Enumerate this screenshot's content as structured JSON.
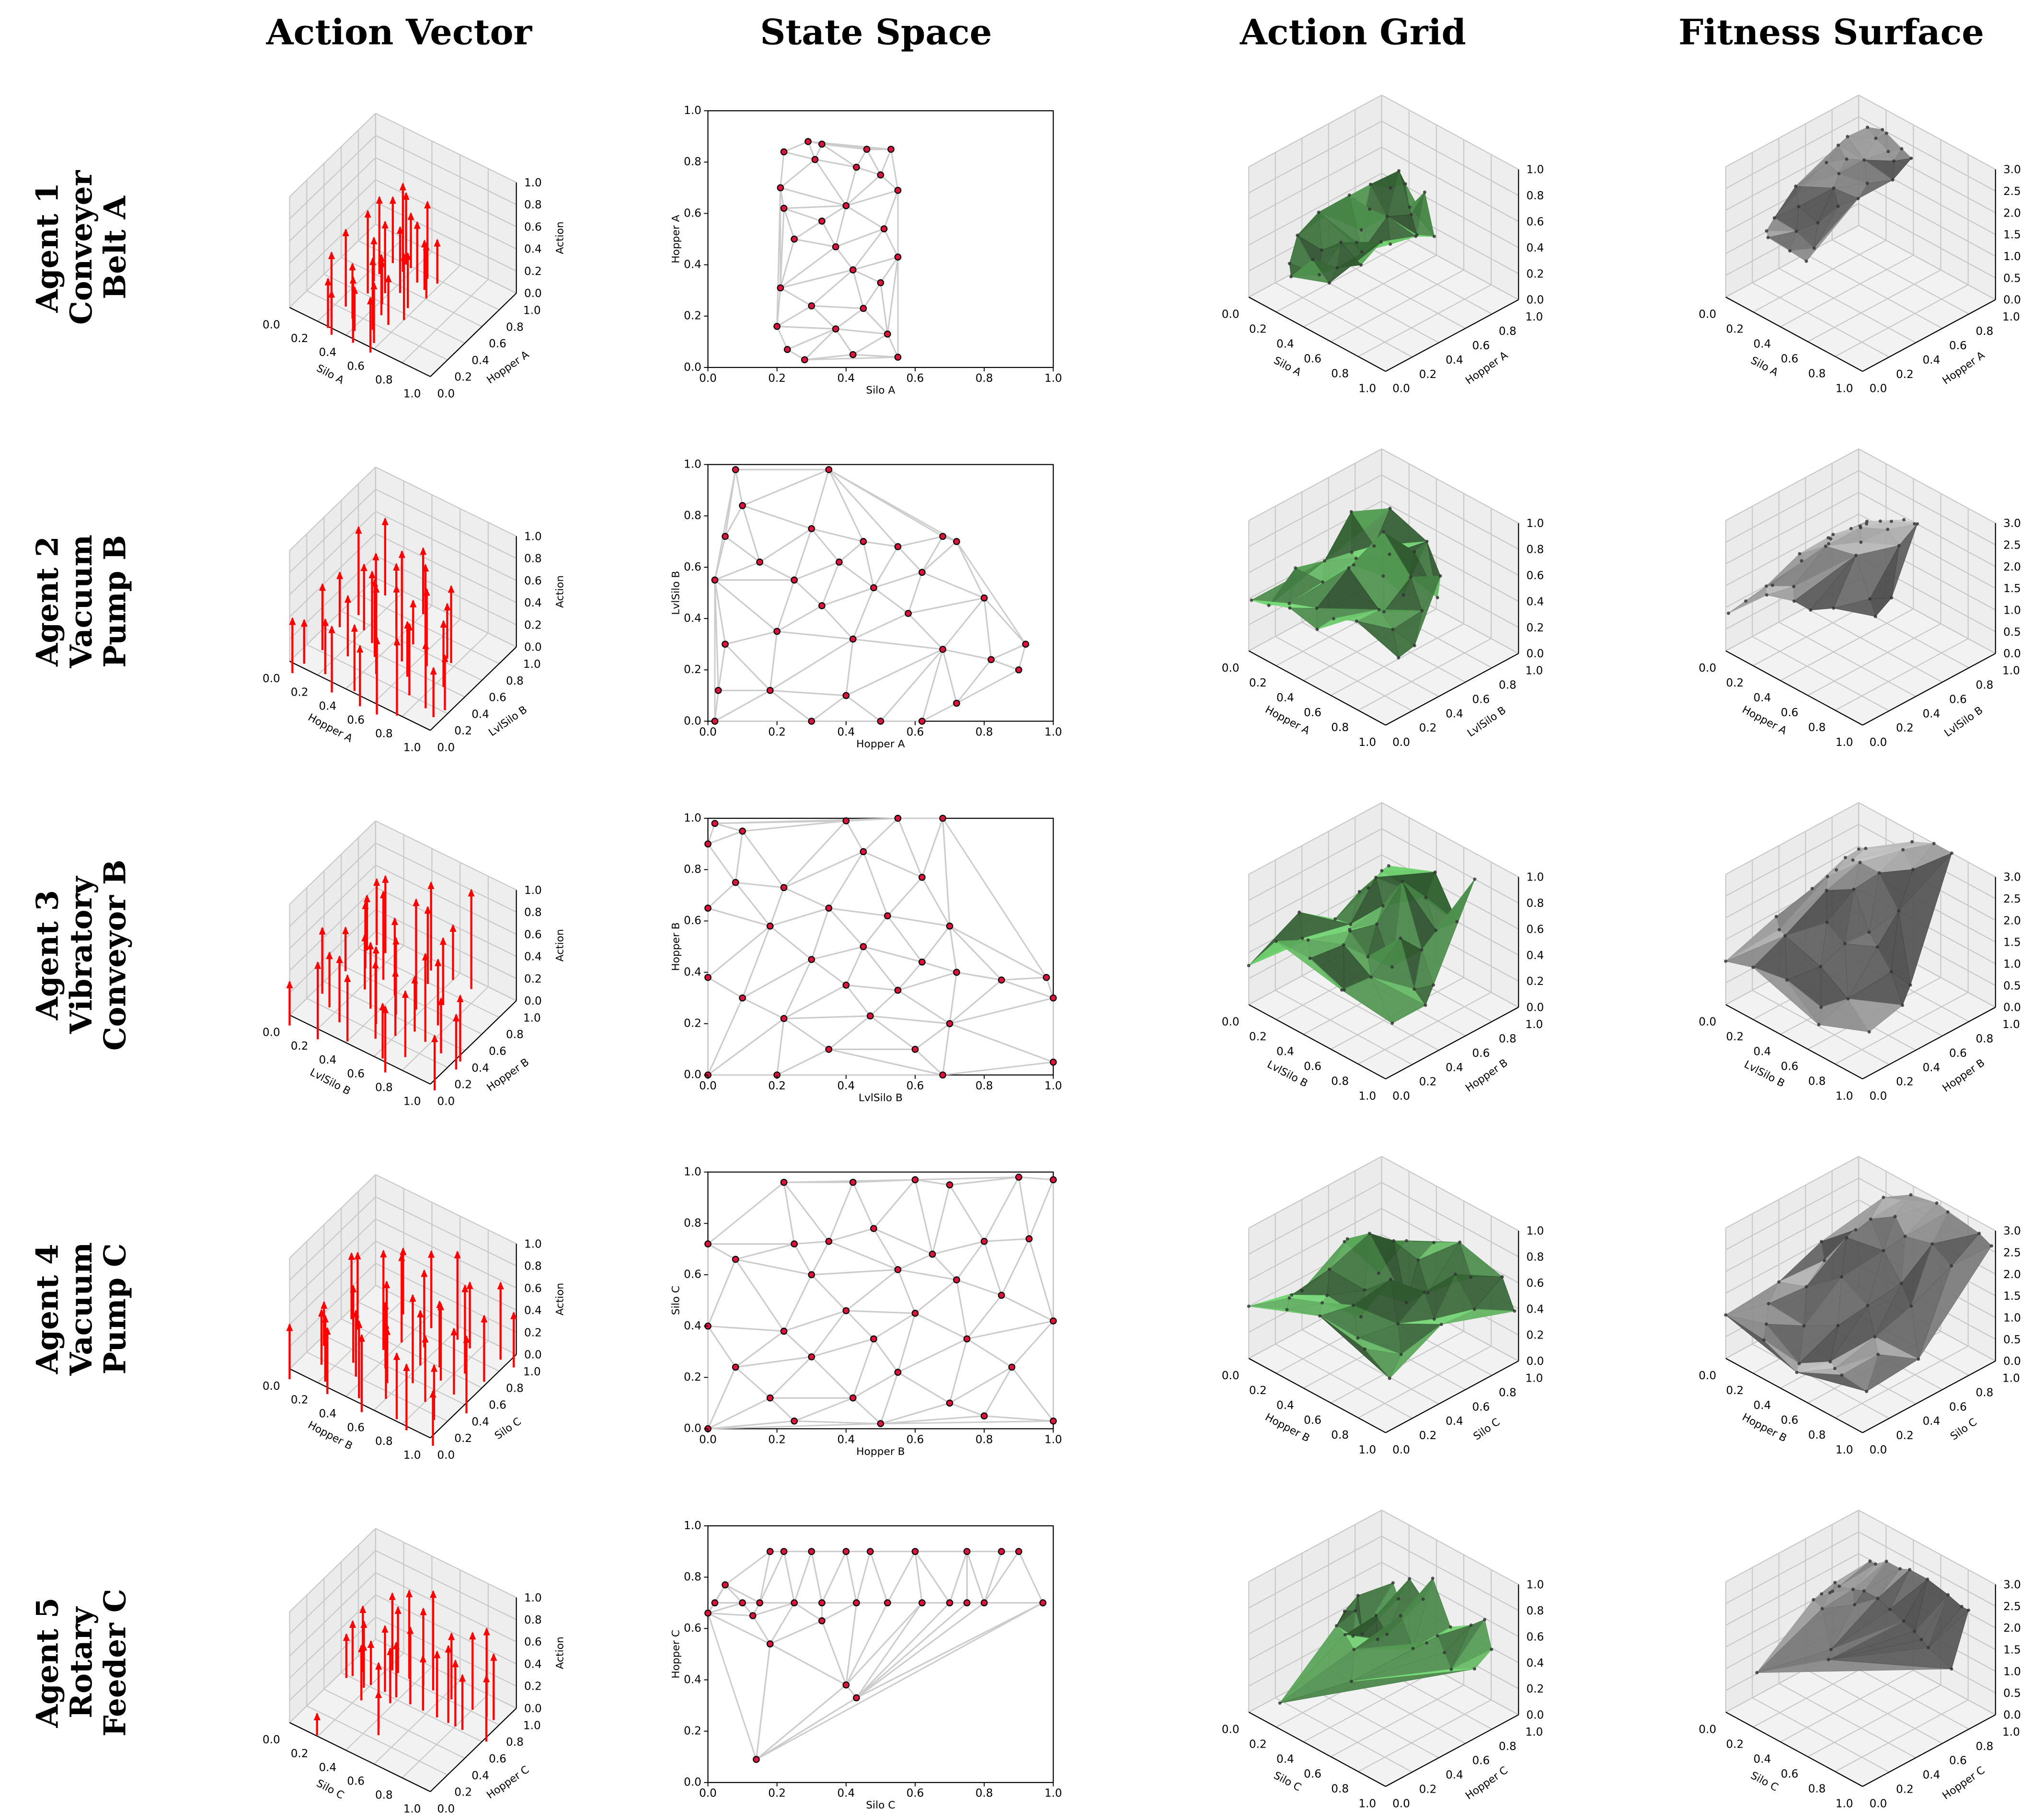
{
  "chart_data": {
    "type": "grid-of-plots",
    "column_titles": [
      "Action Vector",
      "State Space",
      "Action Grid",
      "Fitness Surface"
    ],
    "panel_types": [
      "3d-quiver",
      "scatter-delaunay",
      "3d-trisurface",
      "3d-trisurface"
    ],
    "colors": {
      "arrow": "#ff0000",
      "point_fill": "#dc143c",
      "point_edge": "#000000",
      "mesh": "#cccccc",
      "action_surface": "#77dd77",
      "fitness_surface": "#c8c8c8",
      "surface_points": "#333333"
    },
    "xlim": [
      0,
      1
    ],
    "ylim": [
      0,
      1
    ],
    "action_zlim": [
      0,
      1
    ],
    "fitness_zlim": [
      0,
      3
    ],
    "ticks_unit": [
      "0.0",
      "0.2",
      "0.4",
      "0.6",
      "0.8",
      "1.0"
    ],
    "ticks_fitness": [
      "0.0",
      "0.5",
      "1.0",
      "1.5",
      "2.0",
      "2.5",
      "3.0"
    ],
    "zlabel_action": "Action",
    "agents": [
      {
        "label": [
          "Agent 1",
          "Conveyer",
          "Belt A"
        ],
        "xlabel": "Silo A",
        "ylabel": "Hopper A",
        "points": [
          [
            0.29,
            0.88,
            0.55,
            2.9
          ],
          [
            0.33,
            0.87,
            0.4,
            2.9
          ],
          [
            0.46,
            0.85,
            0.6,
            2.8
          ],
          [
            0.53,
            0.85,
            0.3,
            2.7
          ],
          [
            0.22,
            0.84,
            0.5,
            2.9
          ],
          [
            0.31,
            0.81,
            0.7,
            2.85
          ],
          [
            0.43,
            0.78,
            0.45,
            2.8
          ],
          [
            0.5,
            0.75,
            0.35,
            2.75
          ],
          [
            0.21,
            0.7,
            0.6,
            2.9
          ],
          [
            0.55,
            0.69,
            0.4,
            2.5
          ],
          [
            0.4,
            0.63,
            0.5,
            2.8
          ],
          [
            0.22,
            0.62,
            0.3,
            2.85
          ],
          [
            0.33,
            0.57,
            0.55,
            2.8
          ],
          [
            0.51,
            0.54,
            0.4,
            2.6
          ],
          [
            0.25,
            0.5,
            0.65,
            2.7
          ],
          [
            0.37,
            0.47,
            0.3,
            2.7
          ],
          [
            0.55,
            0.43,
            0.5,
            2.5
          ],
          [
            0.42,
            0.38,
            0.45,
            2.6
          ],
          [
            0.21,
            0.31,
            0.6,
            2.4
          ],
          [
            0.5,
            0.33,
            0.35,
            2.4
          ],
          [
            0.3,
            0.24,
            0.4,
            2.2
          ],
          [
            0.45,
            0.23,
            0.55,
            2.1
          ],
          [
            0.2,
            0.16,
            0.5,
            1.9
          ],
          [
            0.37,
            0.15,
            0.3,
            1.9
          ],
          [
            0.52,
            0.13,
            0.45,
            1.8
          ],
          [
            0.23,
            0.07,
            0.35,
            1.8
          ],
          [
            0.42,
            0.05,
            0.5,
            1.7
          ],
          [
            0.55,
            0.04,
            0.4,
            1.7
          ],
          [
            0.28,
            0.03,
            0.3,
            1.8
          ]
        ]
      },
      {
        "label": [
          "Agent 2",
          "Vacuum",
          "Pump B"
        ],
        "xlabel": "Hopper A",
        "ylabel": "LvlSilo B",
        "points": [
          [
            0.08,
            0.98,
            0.6,
            1.5
          ],
          [
            0.35,
            0.98,
            0.5,
            2.0
          ],
          [
            0.1,
            0.84,
            0.4,
            1.6
          ],
          [
            0.05,
            0.72,
            0.7,
            1.5
          ],
          [
            0.3,
            0.75,
            0.5,
            2.2
          ],
          [
            0.68,
            0.72,
            0.4,
            2.9
          ],
          [
            0.72,
            0.7,
            0.6,
            3.0
          ],
          [
            0.45,
            0.7,
            0.3,
            2.6
          ],
          [
            0.55,
            0.68,
            0.7,
            2.8
          ],
          [
            0.15,
            0.62,
            0.5,
            1.7
          ],
          [
            0.38,
            0.62,
            0.45,
            2.5
          ],
          [
            0.62,
            0.58,
            0.6,
            2.9
          ],
          [
            0.02,
            0.55,
            0.4,
            1.2
          ],
          [
            0.25,
            0.55,
            0.55,
            2.2
          ],
          [
            0.48,
            0.52,
            0.9,
            2.8
          ],
          [
            0.8,
            0.48,
            0.5,
            3.0
          ],
          [
            0.33,
            0.45,
            0.6,
            2.4
          ],
          [
            0.58,
            0.42,
            0.4,
            2.8
          ],
          [
            0.05,
            0.3,
            0.5,
            1.1
          ],
          [
            0.2,
            0.35,
            0.45,
            2.0
          ],
          [
            0.42,
            0.32,
            0.7,
            2.6
          ],
          [
            0.68,
            0.28,
            0.55,
            2.9
          ],
          [
            0.92,
            0.3,
            0.4,
            2.3
          ],
          [
            0.82,
            0.24,
            0.5,
            2.2
          ],
          [
            0.9,
            0.2,
            0.35,
            2.0
          ],
          [
            0.72,
            0.07,
            0.6,
            2.1
          ],
          [
            0.18,
            0.12,
            0.4,
            1.6
          ],
          [
            0.4,
            0.1,
            0.5,
            2.0
          ],
          [
            0.03,
            0.12,
            0.3,
            1.0
          ],
          [
            0.02,
            0.0,
            0.4,
            0.9
          ],
          [
            0.3,
            0.0,
            0.5,
            1.8
          ],
          [
            0.5,
            0.0,
            0.45,
            2.0
          ],
          [
            0.62,
            0.0,
            0.6,
            2.0
          ]
        ]
      },
      {
        "label": [
          "Agent 3",
          "Vibratory",
          "Conveyor B"
        ],
        "xlabel": "LvlSilo B",
        "ylabel": "Hopper B",
        "points": [
          [
            0.02,
            0.98,
            0.5,
            2.0
          ],
          [
            0.1,
            0.95,
            0.6,
            2.2
          ],
          [
            0.4,
            0.99,
            0.7,
            2.8
          ],
          [
            0.55,
            1.0,
            0.4,
            3.0
          ],
          [
            0.68,
            1.0,
            0.8,
            3.0
          ],
          [
            0.0,
            0.9,
            0.4,
            1.9
          ],
          [
            0.45,
            0.87,
            0.6,
            2.9
          ],
          [
            0.62,
            0.77,
            0.5,
            2.9
          ],
          [
            0.08,
            0.75,
            0.5,
            2.0
          ],
          [
            0.22,
            0.73,
            0.7,
            2.5
          ],
          [
            0.35,
            0.65,
            0.6,
            2.8
          ],
          [
            0.52,
            0.62,
            0.9,
            2.9
          ],
          [
            0.7,
            0.58,
            0.5,
            2.4
          ],
          [
            0.18,
            0.58,
            0.4,
            2.3
          ],
          [
            0.0,
            0.65,
            0.3,
            1.6
          ],
          [
            0.45,
            0.5,
            0.6,
            2.6
          ],
          [
            0.3,
            0.45,
            0.5,
            2.4
          ],
          [
            0.62,
            0.44,
            0.4,
            2.0
          ],
          [
            0.72,
            0.4,
            0.7,
            1.9
          ],
          [
            0.0,
            0.38,
            0.5,
            1.4
          ],
          [
            0.4,
            0.35,
            0.6,
            2.0
          ],
          [
            0.55,
            0.33,
            0.5,
            1.8
          ],
          [
            0.85,
            0.37,
            0.4,
            1.6
          ],
          [
            0.98,
            0.38,
            0.5,
            1.5
          ],
          [
            0.1,
            0.3,
            0.4,
            1.4
          ],
          [
            0.22,
            0.22,
            0.5,
            1.6
          ],
          [
            0.47,
            0.23,
            0.6,
            1.3
          ],
          [
            0.7,
            0.2,
            0.5,
            1.0
          ],
          [
            1.0,
            0.3,
            0.4,
            1.2
          ],
          [
            0.35,
            0.1,
            0.5,
            1.0
          ],
          [
            0.6,
            0.1,
            0.4,
            0.8
          ],
          [
            0.0,
            0.0,
            0.3,
            1.0
          ],
          [
            0.2,
            0.0,
            0.6,
            1.2
          ],
          [
            0.68,
            0.0,
            0.5,
            0.7
          ],
          [
            1.0,
            0.05,
            0.4,
            1.0
          ]
        ]
      },
      {
        "label": [
          "Agent 4",
          "Vacuum",
          "Pump C"
        ],
        "xlabel": "Hopper B",
        "ylabel": "Silo C",
        "points": [
          [
            0.22,
            0.96,
            0.5,
            2.5
          ],
          [
            0.42,
            0.96,
            0.6,
            2.9
          ],
          [
            0.6,
            0.97,
            0.7,
            3.0
          ],
          [
            0.7,
            0.95,
            0.5,
            3.0
          ],
          [
            0.9,
            0.98,
            0.6,
            2.8
          ],
          [
            1.0,
            0.97,
            0.4,
            2.7
          ],
          [
            0.0,
            0.72,
            0.5,
            1.5
          ],
          [
            0.08,
            0.66,
            0.6,
            1.3
          ],
          [
            0.25,
            0.72,
            0.4,
            2.2
          ],
          [
            0.35,
            0.73,
            0.7,
            2.6
          ],
          [
            0.48,
            0.78,
            0.6,
            2.8
          ],
          [
            0.65,
            0.68,
            0.5,
            2.8
          ],
          [
            0.8,
            0.73,
            0.7,
            2.8
          ],
          [
            0.93,
            0.74,
            0.5,
            2.5
          ],
          [
            0.3,
            0.6,
            0.8,
            2.3
          ],
          [
            0.55,
            0.62,
            0.4,
            2.4
          ],
          [
            0.72,
            0.58,
            0.6,
            2.0
          ],
          [
            0.4,
            0.46,
            0.5,
            1.8
          ],
          [
            0.6,
            0.45,
            0.7,
            1.5
          ],
          [
            0.85,
            0.52,
            0.5,
            1.8
          ],
          [
            0.0,
            0.4,
            0.3,
            1.1
          ],
          [
            0.22,
            0.38,
            0.6,
            1.4
          ],
          [
            0.48,
            0.35,
            0.4,
            1.0
          ],
          [
            0.75,
            0.35,
            0.5,
            1.2
          ],
          [
            1.0,
            0.42,
            0.6,
            1.0
          ],
          [
            0.08,
            0.24,
            0.4,
            1.0
          ],
          [
            0.3,
            0.28,
            0.5,
            0.8
          ],
          [
            0.55,
            0.22,
            0.6,
            0.5
          ],
          [
            0.88,
            0.24,
            0.4,
            1.2
          ],
          [
            0.18,
            0.12,
            0.5,
            0.9
          ],
          [
            0.42,
            0.12,
            0.6,
            0.4
          ],
          [
            0.7,
            0.1,
            0.5,
            0.8
          ],
          [
            0.0,
            0.0,
            0.4,
            1.0
          ],
          [
            0.25,
            0.03,
            0.5,
            0.8
          ],
          [
            0.5,
            0.02,
            0.6,
            0.5
          ],
          [
            0.8,
            0.05,
            0.5,
            0.9
          ],
          [
            1.0,
            0.03,
            0.4,
            0.9
          ]
        ]
      },
      {
        "label": [
          "Agent 5",
          "Rotary",
          "Feeder C"
        ],
        "xlabel": "Silo C",
        "ylabel": "Hopper C",
        "points": [
          [
            0.05,
            0.77,
            0.5,
            1.8
          ],
          [
            0.02,
            0.7,
            0.4,
            1.6
          ],
          [
            0.1,
            0.7,
            0.45,
            1.8
          ],
          [
            0.0,
            0.66,
            0.3,
            1.5
          ],
          [
            0.18,
            0.9,
            0.6,
            2.3
          ],
          [
            0.22,
            0.9,
            0.5,
            2.3
          ],
          [
            0.3,
            0.9,
            0.7,
            2.5
          ],
          [
            0.4,
            0.9,
            0.6,
            2.5
          ],
          [
            0.47,
            0.9,
            0.8,
            2.6
          ],
          [
            0.6,
            0.9,
            0.5,
            2.6
          ],
          [
            0.75,
            0.9,
            0.6,
            2.5
          ],
          [
            0.85,
            0.9,
            0.7,
            2.4
          ],
          [
            0.9,
            0.9,
            0.5,
            2.4
          ],
          [
            0.15,
            0.7,
            0.3,
            2.0
          ],
          [
            0.25,
            0.7,
            0.5,
            2.1
          ],
          [
            0.33,
            0.7,
            0.4,
            2.2
          ],
          [
            0.43,
            0.7,
            0.6,
            2.2
          ],
          [
            0.52,
            0.7,
            0.4,
            2.1
          ],
          [
            0.62,
            0.7,
            0.5,
            2.0
          ],
          [
            0.7,
            0.7,
            0.6,
            1.9
          ],
          [
            0.75,
            0.7,
            0.5,
            1.8
          ],
          [
            0.8,
            0.7,
            0.4,
            1.7
          ],
          [
            0.97,
            0.7,
            0.5,
            1.5
          ],
          [
            0.33,
            0.63,
            0.4,
            2.0
          ],
          [
            0.13,
            0.65,
            0.3,
            1.9
          ],
          [
            0.18,
            0.54,
            0.4,
            1.8
          ],
          [
            0.4,
            0.38,
            0.5,
            1.5
          ],
          [
            0.43,
            0.33,
            0.3,
            1.4
          ],
          [
            0.14,
            0.09,
            0.1,
            1.0
          ]
        ]
      }
    ]
  }
}
